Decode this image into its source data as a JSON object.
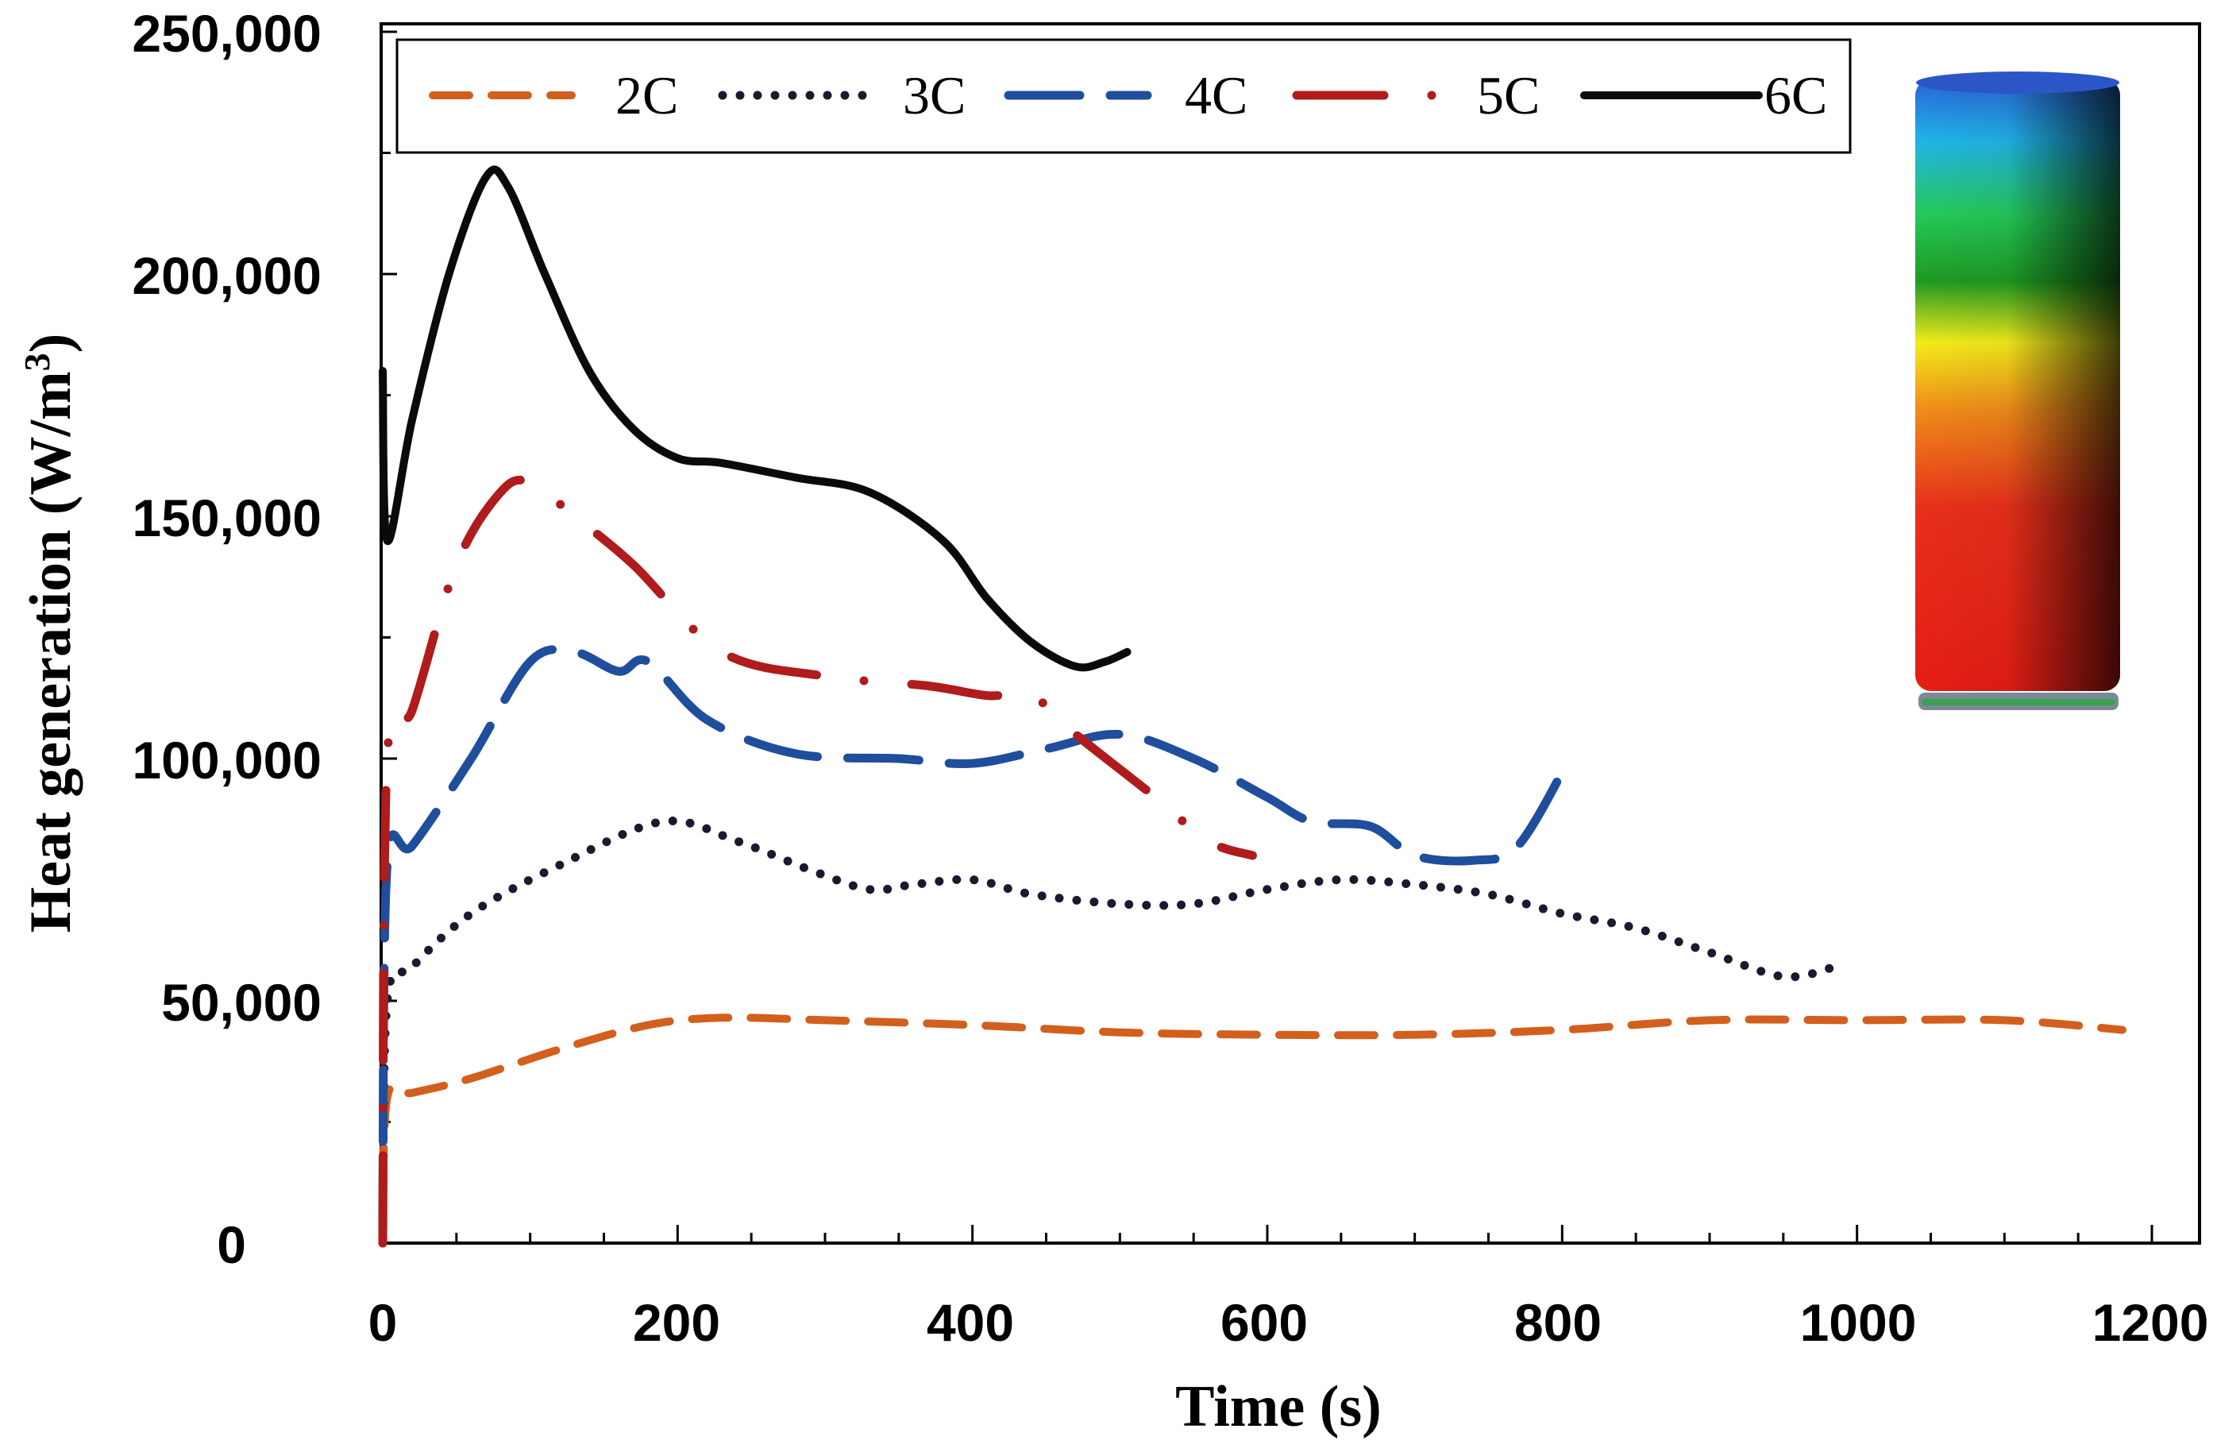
{
  "chart_data": {
    "type": "line",
    "title": "",
    "xlabel": "Time (s)",
    "ylabel_main": "Heat generation (W/m",
    "ylabel_sup": "3",
    "ylabel_close": ")",
    "xlim": [
      0,
      1200
    ],
    "ylim": [
      0,
      250000
    ],
    "xticks": [
      0,
      200,
      400,
      600,
      800,
      1000,
      1200
    ],
    "xtick_labels": [
      "0",
      "200",
      "400",
      "600",
      "800",
      "1000",
      "1200"
    ],
    "yticks": [
      0,
      50000,
      100000,
      150000,
      200000,
      250000
    ],
    "ytick_labels": [
      "0",
      "50,000",
      "100,000",
      "150,000",
      "200,000",
      "250,000"
    ],
    "grid": false,
    "legend_position": "top",
    "series": [
      {
        "name": "2C",
        "color": "#d35f1e",
        "style": "dashed",
        "x": [
          0,
          3,
          20,
          60,
          120,
          180,
          230,
          300,
          400,
          500,
          600,
          700,
          800,
          900,
          1000,
          1100,
          1180
        ],
        "y": [
          0,
          30000,
          31000,
          34000,
          40000,
          45000,
          46500,
          46000,
          45000,
          43500,
          43000,
          43000,
          44000,
          46000,
          46000,
          46000,
          44000
        ]
      },
      {
        "name": "3C",
        "color": "#1a1a2e",
        "style": "dotted",
        "x": [
          0,
          3,
          20,
          60,
          120,
          190,
          240,
          290,
          330,
          360,
          400,
          440,
          500,
          550,
          600,
          650,
          700,
          750,
          800,
          850,
          900,
          950,
          985
        ],
        "y": [
          0,
          50000,
          57000,
          68000,
          78000,
          87000,
          83000,
          77000,
          73000,
          74000,
          75000,
          72000,
          70000,
          70000,
          73000,
          75000,
          74000,
          72000,
          68000,
          65000,
          60000,
          55000,
          57000
        ]
      },
      {
        "name": "4C",
        "color": "#1f4e9c",
        "style": "longdash",
        "x": [
          0,
          3,
          20,
          60,
          100,
          130,
          160,
          180,
          220,
          280,
          350,
          400,
          450,
          500,
          550,
          600,
          630,
          670,
          700,
          740,
          770,
          805
        ],
        "y": [
          0,
          78000,
          82000,
          100000,
          120000,
          122000,
          118000,
          120000,
          108000,
          101000,
          100000,
          99000,
          102000,
          105000,
          100000,
          92000,
          87000,
          86000,
          80000,
          79000,
          82000,
          100000
        ]
      },
      {
        "name": "5C",
        "color": "#b01b1b",
        "style": "dashdot",
        "x": [
          0,
          3,
          20,
          50,
          80,
          100,
          130,
          170,
          230,
          300,
          370,
          410,
          440,
          470,
          520,
          560,
          590
        ],
        "y": [
          0,
          100000,
          110000,
          140000,
          155000,
          157000,
          150000,
          140000,
          122000,
          117000,
          115000,
          113000,
          113000,
          105000,
          93000,
          83000,
          80000
        ]
      },
      {
        "name": "6C",
        "color": "#0a0a0a",
        "style": "solid",
        "x": [
          0,
          3,
          20,
          45,
          70,
          85,
          110,
          140,
          170,
          200,
          230,
          280,
          330,
          380,
          410,
          440,
          470,
          490,
          505
        ],
        "y": [
          180000,
          145000,
          170000,
          200000,
          220000,
          218000,
          200000,
          180000,
          168000,
          162000,
          161000,
          158000,
          155000,
          145000,
          133000,
          124000,
          119000,
          120000,
          122000
        ]
      }
    ]
  }
}
